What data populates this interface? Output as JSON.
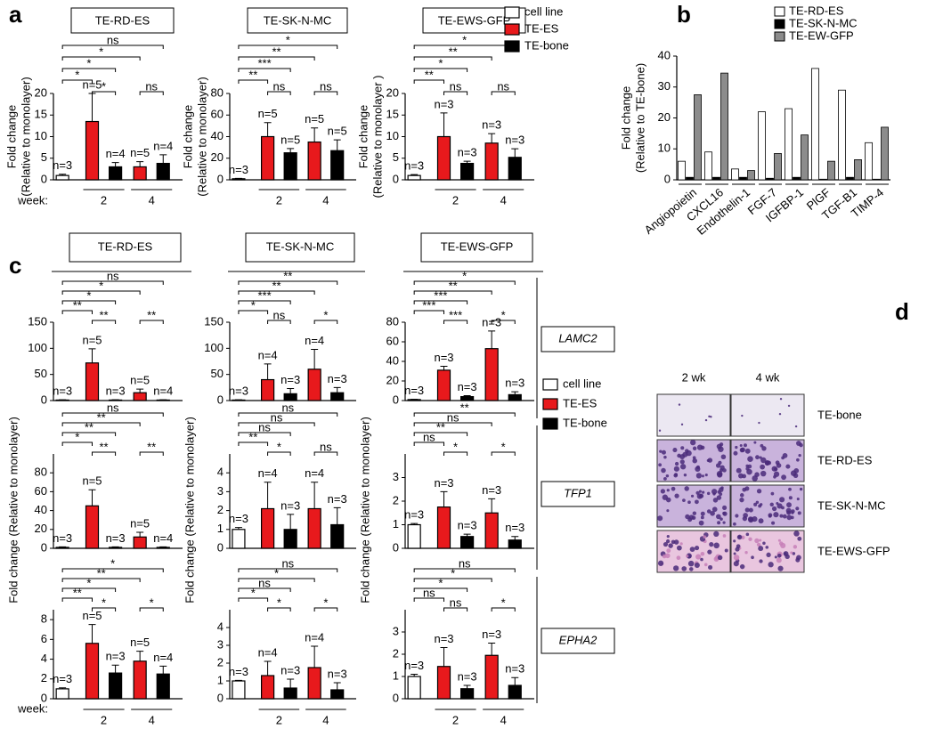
{
  "panel_letters": [
    "a",
    "b",
    "c",
    "d"
  ],
  "panel_a": {
    "legend": [
      {
        "name": "cell line",
        "color": "#ffffff"
      },
      {
        "name": "TE-ES",
        "color": "#e8191c"
      },
      {
        "name": "TE-bone",
        "color": "#000000"
      }
    ],
    "week_label": "week:"
  },
  "panel_c": {
    "columns": [
      {
        "title": "TE-RD-ES",
        "ylabel": "Fold change (Relative to monolayer)"
      },
      {
        "title": "TE-SK-N-MC",
        "ylabel": "Fold change (Relative to monolayer)"
      },
      {
        "title": "TE-EWS-GFP",
        "ylabel": "Fold change (Relative to monolayer)"
      }
    ],
    "rows": [
      "LAMC2",
      "TFP1",
      "EPHA2"
    ],
    "legend": [
      {
        "name": "cell line",
        "color": "#ffffff"
      },
      {
        "name": "TE-ES",
        "color": "#e8191c"
      },
      {
        "name": "TE-bone",
        "color": "#000000"
      }
    ],
    "week_label": "week:"
  },
  "panel_d": {
    "columns": [
      "2 wk",
      "4 wk"
    ],
    "rows": [
      "TE-bone",
      "TE-RD-ES",
      "TE-SK-N-MC",
      "TE-EWS-GFP"
    ]
  },
  "chart_data": [
    {
      "type": "bar",
      "title": "TE-RD-ES",
      "ylabel": [
        "Fold change",
        "(Relative to monolayer)"
      ],
      "colors": [
        "#ffffff",
        "#e8191c",
        "#000000",
        "#e8191c",
        "#000000"
      ],
      "values": [
        1,
        13.5,
        3,
        3,
        3.8
      ],
      "errors": [
        0.3,
        6.5,
        1,
        1.2,
        2
      ],
      "n_labels": [
        "n=3",
        "n=5",
        "n=4",
        "n=5",
        "n=4"
      ],
      "significance": [
        "*",
        "*",
        "*",
        "ns",
        "*",
        "ns"
      ],
      "groups": [
        "2",
        "4"
      ],
      "ylim": [
        0,
        20
      ],
      "yticks": [
        0,
        5,
        10,
        15,
        20
      ]
    },
    {
      "type": "bar",
      "title": "TE-SK-N-MC",
      "ylabel": [
        "Fold change",
        "(Relative to monolayer)"
      ],
      "colors": [
        "#ffffff",
        "#e8191c",
        "#000000",
        "#e8191c",
        "#000000"
      ],
      "values": [
        1,
        40,
        25,
        35,
        27
      ],
      "errors": [
        0.3,
        13,
        4,
        13,
        10
      ],
      "n_labels": [
        "n=3",
        "n=5",
        "n=5",
        "n=5",
        "n=5"
      ],
      "significance": [
        "**",
        "ns",
        "***",
        "ns",
        "**",
        "*"
      ],
      "groups": [
        "2",
        "4"
      ],
      "ylim": [
        0,
        80
      ],
      "yticks": [
        0,
        20,
        40,
        60,
        80
      ]
    },
    {
      "type": "bar",
      "title": "TE-EWS-GFP",
      "ylabel": [
        "Fold change",
        "(Relative to monolayer )"
      ],
      "colors": [
        "#ffffff",
        "#e8191c",
        "#000000",
        "#e8191c",
        "#000000"
      ],
      "values": [
        1,
        10,
        3.8,
        8.5,
        5.2
      ],
      "errors": [
        0.2,
        5.5,
        0.5,
        2.2,
        2
      ],
      "n_labels": [
        "n=3",
        "n=3",
        "n=3",
        "n=3",
        "n=3"
      ],
      "significance": [
        "**",
        "ns",
        "*",
        "ns",
        "**",
        "*"
      ],
      "groups": [
        "2",
        "4"
      ],
      "ylim": [
        0,
        20
      ],
      "yticks": [
        0,
        5,
        10,
        15,
        20
      ]
    },
    {
      "type": "grouped_bar",
      "ylabel": [
        "Fold change",
        "(Relative to TE-bone)"
      ],
      "categories": [
        "Angiopoietin",
        "CXCL16",
        "Endothelin-1",
        "FGF-7",
        "IGFBP-1",
        "PlGF",
        "TGF-B1",
        "TIMP-4"
      ],
      "series": [
        {
          "name": "TE-RD-ES",
          "color": "#ffffff",
          "values": [
            6,
            9,
            3.5,
            22,
            23,
            36,
            29,
            12
          ]
        },
        {
          "name": "TE-SK-N-MC",
          "color": "#000000",
          "values": [
            0.8,
            0.8,
            0.8,
            0.5,
            0.8,
            0.2,
            0.8,
            0.2
          ]
        },
        {
          "name": "TE-EW-GFP",
          "color": "#8c8c8c",
          "values": [
            27.5,
            34.5,
            3,
            8.5,
            14.5,
            6,
            6.5,
            17
          ]
        }
      ],
      "ylim": [
        0,
        40
      ],
      "yticks": [
        0,
        10,
        20,
        30,
        40
      ]
    },
    {
      "type": "bar",
      "colors": [
        "#ffffff",
        "#e8191c",
        "#000000",
        "#e8191c",
        "#000000"
      ],
      "values": [
        1,
        72,
        1,
        15,
        1
      ],
      "errors": [
        0.5,
        27,
        0.5,
        7,
        0.5
      ],
      "n_labels": [
        "n=3",
        "n=5",
        "n=3",
        "n=5",
        "n=4"
      ],
      "significance": [
        "**",
        "**",
        "*",
        "**",
        "*",
        "ns"
      ],
      "ylim": [
        0,
        150
      ],
      "yticks": [
        0,
        50,
        100,
        150
      ]
    },
    {
      "type": "bar",
      "colors": [
        "#ffffff",
        "#e8191c",
        "#000000",
        "#e8191c",
        "#000000"
      ],
      "values": [
        1,
        40,
        13,
        60,
        15
      ],
      "errors": [
        0.5,
        30,
        10,
        38,
        10
      ],
      "n_labels": [
        "n=3",
        "n=4",
        "n=3",
        "n=4",
        "n=3"
      ],
      "significance": [
        "*",
        "ns",
        "***",
        "*",
        "**",
        "**"
      ],
      "ylim": [
        0,
        150
      ],
      "yticks": [
        0,
        50,
        100,
        150
      ]
    },
    {
      "type": "bar",
      "colors": [
        "#ffffff",
        "#e8191c",
        "#000000",
        "#e8191c",
        "#000000"
      ],
      "values": [
        1,
        31,
        4,
        53,
        6
      ],
      "errors": [
        0.3,
        4,
        1,
        18,
        3
      ],
      "n_labels": [
        "n=3",
        "n=3",
        "n=3",
        "n=3",
        "n=3"
      ],
      "significance": [
        "***",
        "***",
        "***",
        "*",
        "**",
        "*"
      ],
      "ylim": [
        0,
        80
      ],
      "yticks": [
        0,
        20,
        40,
        60,
        80
      ]
    },
    {
      "type": "bar",
      "colors": [
        "#ffffff",
        "#e8191c",
        "#000000",
        "#e8191c",
        "#000000"
      ],
      "values": [
        1,
        45,
        1,
        12,
        1
      ],
      "errors": [
        0.5,
        17,
        0.5,
        5,
        0.5
      ],
      "n_labels": [
        "n=3",
        "n=5",
        "n=3",
        "n=5",
        "n=4"
      ],
      "significance": [
        "*",
        "**",
        "**",
        "**",
        "**",
        "ns"
      ],
      "ylim": [
        0,
        100
      ],
      "yticks": [
        0,
        20,
        40,
        60,
        80
      ]
    },
    {
      "type": "bar",
      "colors": [
        "#ffffff",
        "#e8191c",
        "#000000",
        "#e8191c",
        "#000000"
      ],
      "values": [
        1,
        2.1,
        1,
        2.1,
        1.25
      ],
      "errors": [
        0.1,
        1.4,
        0.8,
        1.4,
        0.9
      ],
      "n_labels": [
        "n=3",
        "n=4",
        "n=3",
        "n=4",
        "n=3"
      ],
      "significance": [
        "**",
        "*",
        "ns",
        "ns",
        "ns",
        "ns"
      ],
      "ylim": [
        0,
        5
      ],
      "yticks": [
        0,
        1,
        2,
        3,
        4
      ]
    },
    {
      "type": "bar",
      "colors": [
        "#ffffff",
        "#e8191c",
        "#000000",
        "#e8191c",
        "#000000"
      ],
      "values": [
        1,
        1.75,
        0.5,
        1.5,
        0.35
      ],
      "errors": [
        0.05,
        0.65,
        0.1,
        0.6,
        0.15
      ],
      "n_labels": [
        "n=3",
        "n=3",
        "n=3",
        "n=3",
        "n=3"
      ],
      "significance": [
        "ns",
        "*",
        "**",
        "*",
        "ns",
        "**"
      ],
      "ylim": [
        0,
        4
      ],
      "yticks": [
        0,
        1,
        2,
        3
      ]
    },
    {
      "type": "bar",
      "colors": [
        "#ffffff",
        "#e8191c",
        "#000000",
        "#e8191c",
        "#000000"
      ],
      "values": [
        1,
        5.6,
        2.6,
        3.8,
        2.5
      ],
      "errors": [
        0.1,
        1.9,
        0.8,
        1,
        0.8
      ],
      "n_labels": [
        "n=3",
        "n=5",
        "n=3",
        "n=5",
        "n=4"
      ],
      "significance": [
        "**",
        "*",
        "*",
        "*",
        "**",
        "*"
      ],
      "groups": [
        "2",
        "4"
      ],
      "ylim": [
        0,
        9
      ],
      "yticks": [
        0,
        2,
        4,
        6,
        8
      ]
    },
    {
      "type": "bar",
      "colors": [
        "#ffffff",
        "#e8191c",
        "#000000",
        "#e8191c",
        "#000000"
      ],
      "values": [
        1,
        1.3,
        0.6,
        1.75,
        0.5
      ],
      "errors": [
        0.03,
        0.8,
        0.5,
        1.2,
        0.4
      ],
      "n_labels": [
        "n=3",
        "n=4",
        "n=3",
        "n=4",
        "n=3"
      ],
      "significance": [
        "*",
        "*",
        "ns",
        "*",
        "*",
        "ns"
      ],
      "groups": [
        "2",
        "4"
      ],
      "ylim": [
        0,
        5
      ],
      "yticks": [
        0,
        1,
        2,
        3,
        4
      ]
    },
    {
      "type": "bar",
      "colors": [
        "#ffffff",
        "#e8191c",
        "#000000",
        "#e8191c",
        "#000000"
      ],
      "values": [
        1,
        1.45,
        0.45,
        1.95,
        0.6
      ],
      "errors": [
        0.1,
        0.85,
        0.15,
        0.55,
        0.35
      ],
      "n_labels": [
        "n=3",
        "n=3",
        "n=3",
        "n=3",
        "n=3"
      ],
      "significance": [
        "ns",
        "ns",
        "*",
        "*",
        "*",
        "ns"
      ],
      "groups": [
        "2",
        "4"
      ],
      "ylim": [
        0,
        4
      ],
      "yticks": [
        0,
        1,
        2,
        3
      ]
    }
  ]
}
